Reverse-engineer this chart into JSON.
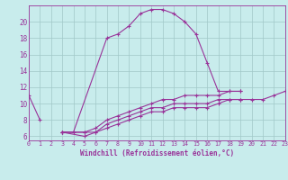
{
  "xlabel": "Windchill (Refroidissement éolien,°C)",
  "bg_color": "#c8ecec",
  "grid_color": "#a0c8c8",
  "line_color": "#993399",
  "seg1x": [
    0,
    1
  ],
  "seg1y": [
    11.0,
    8.0
  ],
  "seg2x": [
    3,
    4,
    7,
    8,
    9,
    10,
    11,
    12,
    13,
    14,
    15,
    16,
    17,
    18,
    19
  ],
  "seg2y": [
    6.5,
    6.5,
    18.0,
    18.5,
    19.5,
    21.0,
    21.5,
    21.5,
    21.0,
    20.0,
    18.5,
    15.0,
    11.5,
    11.5,
    11.5
  ],
  "c2x": [
    3,
    5,
    6,
    7,
    8,
    9,
    10,
    11,
    12,
    13,
    14,
    15,
    16,
    17,
    18,
    19
  ],
  "c2y": [
    6.5,
    6.5,
    7.0,
    8.0,
    8.5,
    9.0,
    9.5,
    10.0,
    10.5,
    10.5,
    11.0,
    11.0,
    11.0,
    11.0,
    11.5,
    11.5
  ],
  "c3x": [
    3,
    5,
    6,
    7,
    8,
    9,
    10,
    11,
    12,
    13,
    14,
    15,
    16,
    17,
    18,
    19
  ],
  "c3y": [
    6.5,
    6.5,
    6.5,
    7.5,
    8.0,
    8.5,
    9.0,
    9.5,
    9.5,
    10.0,
    10.0,
    10.0,
    10.0,
    10.5,
    10.5,
    10.5
  ],
  "c4x": [
    3,
    5,
    6,
    7,
    8,
    9,
    10,
    11,
    12,
    13,
    14,
    15,
    16,
    17,
    18,
    19,
    20,
    21,
    22,
    23
  ],
  "c4y": [
    6.5,
    6.0,
    6.5,
    7.0,
    7.5,
    8.0,
    8.5,
    9.0,
    9.0,
    9.5,
    9.5,
    9.5,
    9.5,
    10.0,
    10.5,
    10.5,
    10.5,
    10.5,
    11.0,
    11.5
  ],
  "ylim": [
    5.5,
    22.0
  ],
  "xlim": [
    0,
    23
  ],
  "yticks": [
    6,
    8,
    10,
    12,
    14,
    16,
    18,
    20
  ],
  "xtick_labels": [
    "0",
    "1",
    "2",
    "3",
    "4",
    "5",
    "6",
    "7",
    "8",
    "9",
    "10",
    "11",
    "12",
    "13",
    "14",
    "15",
    "16",
    "17",
    "18",
    "19",
    "20",
    "21",
    "22",
    "23"
  ],
  "xlabel_fontsize": 5.5,
  "ytick_fontsize": 5.5,
  "xtick_fontsize": 4.8,
  "linewidth": 0.8,
  "markersize": 3.0,
  "markeredgewidth": 0.8
}
